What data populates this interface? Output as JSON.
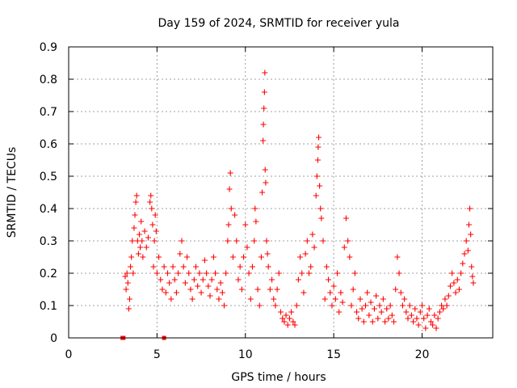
{
  "chart_data": {
    "type": "scatter",
    "title": "Day 159 of 2024, SRMTID for receiver yula",
    "xlabel": "GPS time / hours",
    "ylabel": "SRMTID / TECUs",
    "xlim": [
      0,
      24
    ],
    "ylim": [
      0,
      0.9
    ],
    "xticks": [
      0,
      5,
      10,
      15,
      20
    ],
    "xtick_labels": [
      "0",
      "5",
      "10",
      "15",
      "20"
    ],
    "yticks": [
      0,
      0.1,
      0.2,
      0.3,
      0.4,
      0.5,
      0.6,
      0.7,
      0.8,
      0.9
    ],
    "ytick_labels": [
      "0",
      "0.1",
      "0.2",
      "0.3",
      "0.4",
      "0.5",
      "0.6",
      "0.7",
      "0.8",
      "0.9"
    ],
    "grid": true,
    "series": [
      {
        "name": "SRMTID",
        "marker": "plus",
        "color": "#ff0000",
        "points": [
          [
            3.2,
            0.19
          ],
          [
            3.25,
            0.15
          ],
          [
            3.3,
            0.2
          ],
          [
            3.35,
            0.17
          ],
          [
            3.4,
            0.09
          ],
          [
            3.45,
            0.12
          ],
          [
            3.5,
            0.22
          ],
          [
            3.55,
            0.25
          ],
          [
            3.6,
            0.3
          ],
          [
            3.65,
            0.2
          ],
          [
            3.7,
            0.34
          ],
          [
            3.75,
            0.38
          ],
          [
            3.8,
            0.42
          ],
          [
            3.85,
            0.44
          ],
          [
            3.9,
            0.3
          ],
          [
            3.95,
            0.26
          ],
          [
            4.0,
            0.32
          ],
          [
            4.05,
            0.28
          ],
          [
            4.1,
            0.36
          ],
          [
            4.15,
            0.3
          ],
          [
            4.2,
            0.25
          ],
          [
            4.3,
            0.33
          ],
          [
            4.4,
            0.28
          ],
          [
            4.5,
            0.31
          ],
          [
            4.6,
            0.42
          ],
          [
            4.65,
            0.44
          ],
          [
            4.7,
            0.4
          ],
          [
            4.75,
            0.35
          ],
          [
            4.8,
            0.22
          ],
          [
            4.85,
            0.3
          ],
          [
            4.9,
            0.38
          ],
          [
            4.95,
            0.33
          ],
          [
            5.0,
            0.2
          ],
          [
            5.1,
            0.25
          ],
          [
            5.2,
            0.18
          ],
          [
            5.3,
            0.15
          ],
          [
            5.4,
            0.22
          ],
          [
            5.5,
            0.14
          ],
          [
            5.6,
            0.2
          ],
          [
            5.7,
            0.17
          ],
          [
            5.8,
            0.12
          ],
          [
            5.9,
            0.22
          ],
          [
            6.0,
            0.18
          ],
          [
            6.1,
            0.14
          ],
          [
            6.2,
            0.2
          ],
          [
            6.3,
            0.26
          ],
          [
            6.4,
            0.3
          ],
          [
            6.5,
            0.22
          ],
          [
            6.6,
            0.17
          ],
          [
            6.7,
            0.25
          ],
          [
            6.8,
            0.2
          ],
          [
            6.9,
            0.15
          ],
          [
            7.0,
            0.12
          ],
          [
            7.1,
            0.18
          ],
          [
            7.2,
            0.22
          ],
          [
            7.3,
            0.16
          ],
          [
            7.4,
            0.2
          ],
          [
            7.5,
            0.14
          ],
          [
            7.6,
            0.18
          ],
          [
            7.7,
            0.24
          ],
          [
            7.8,
            0.2
          ],
          [
            7.9,
            0.16
          ],
          [
            8.0,
            0.13
          ],
          [
            8.1,
            0.18
          ],
          [
            8.2,
            0.25
          ],
          [
            8.3,
            0.2
          ],
          [
            8.4,
            0.15
          ],
          [
            8.5,
            0.12
          ],
          [
            8.6,
            0.17
          ],
          [
            8.7,
            0.14
          ],
          [
            8.8,
            0.1
          ],
          [
            8.9,
            0.2
          ],
          [
            9.0,
            0.3
          ],
          [
            9.05,
            0.35
          ],
          [
            9.1,
            0.46
          ],
          [
            9.15,
            0.51
          ],
          [
            9.2,
            0.4
          ],
          [
            9.3,
            0.25
          ],
          [
            9.4,
            0.38
          ],
          [
            9.5,
            0.3
          ],
          [
            9.6,
            0.18
          ],
          [
            9.7,
            0.22
          ],
          [
            9.8,
            0.15
          ],
          [
            9.9,
            0.25
          ],
          [
            10.0,
            0.35
          ],
          [
            10.1,
            0.28
          ],
          [
            10.2,
            0.2
          ],
          [
            10.3,
            0.12
          ],
          [
            10.4,
            0.22
          ],
          [
            10.5,
            0.3
          ],
          [
            10.55,
            0.4
          ],
          [
            10.6,
            0.36
          ],
          [
            10.7,
            0.15
          ],
          [
            10.8,
            0.1
          ],
          [
            10.9,
            0.25
          ],
          [
            10.95,
            0.45
          ],
          [
            11.0,
            0.61
          ],
          [
            11.02,
            0.66
          ],
          [
            11.05,
            0.71
          ],
          [
            11.08,
            0.76
          ],
          [
            11.1,
            0.82
          ],
          [
            11.12,
            0.52
          ],
          [
            11.15,
            0.48
          ],
          [
            11.2,
            0.3
          ],
          [
            11.25,
            0.26
          ],
          [
            11.3,
            0.22
          ],
          [
            11.4,
            0.15
          ],
          [
            11.5,
            0.18
          ],
          [
            11.6,
            0.12
          ],
          [
            11.7,
            0.1
          ],
          [
            11.8,
            0.15
          ],
          [
            11.9,
            0.2
          ],
          [
            12.0,
            0.08
          ],
          [
            12.1,
            0.06
          ],
          [
            12.2,
            0.05
          ],
          [
            12.3,
            0.07
          ],
          [
            12.4,
            0.04
          ],
          [
            12.5,
            0.06
          ],
          [
            12.6,
            0.08
          ],
          [
            12.7,
            0.05
          ],
          [
            12.8,
            0.04
          ],
          [
            12.9,
            0.1
          ],
          [
            13.0,
            0.18
          ],
          [
            13.1,
            0.25
          ],
          [
            13.2,
            0.2
          ],
          [
            13.3,
            0.14
          ],
          [
            13.4,
            0.26
          ],
          [
            13.5,
            0.3
          ],
          [
            13.6,
            0.2
          ],
          [
            13.7,
            0.22
          ],
          [
            13.8,
            0.32
          ],
          [
            13.9,
            0.28
          ],
          [
            14.0,
            0.44
          ],
          [
            14.05,
            0.5
          ],
          [
            14.1,
            0.55
          ],
          [
            14.12,
            0.59
          ],
          [
            14.15,
            0.62
          ],
          [
            14.2,
            0.47
          ],
          [
            14.25,
            0.4
          ],
          [
            14.3,
            0.37
          ],
          [
            14.4,
            0.3
          ],
          [
            14.5,
            0.12
          ],
          [
            14.6,
            0.22
          ],
          [
            14.7,
            0.18
          ],
          [
            14.8,
            0.14
          ],
          [
            14.9,
            0.1
          ],
          [
            15.0,
            0.16
          ],
          [
            15.1,
            0.12
          ],
          [
            15.2,
            0.2
          ],
          [
            15.3,
            0.08
          ],
          [
            15.4,
            0.14
          ],
          [
            15.5,
            0.11
          ],
          [
            15.6,
            0.28
          ],
          [
            15.7,
            0.37
          ],
          [
            15.8,
            0.3
          ],
          [
            15.9,
            0.25
          ],
          [
            16.0,
            0.1
          ],
          [
            16.1,
            0.15
          ],
          [
            16.2,
            0.2
          ],
          [
            16.3,
            0.08
          ],
          [
            16.4,
            0.06
          ],
          [
            16.5,
            0.12
          ],
          [
            16.6,
            0.09
          ],
          [
            16.7,
            0.05
          ],
          [
            16.8,
            0.1
          ],
          [
            16.9,
            0.14
          ],
          [
            17.0,
            0.07
          ],
          [
            17.1,
            0.11
          ],
          [
            17.2,
            0.05
          ],
          [
            17.3,
            0.09
          ],
          [
            17.4,
            0.13
          ],
          [
            17.5,
            0.06
          ],
          [
            17.6,
            0.1
          ],
          [
            17.7,
            0.08
          ],
          [
            17.8,
            0.12
          ],
          [
            17.9,
            0.05
          ],
          [
            18.0,
            0.09
          ],
          [
            18.1,
            0.06
          ],
          [
            18.2,
            0.1
          ],
          [
            18.3,
            0.07
          ],
          [
            18.4,
            0.05
          ],
          [
            18.5,
            0.15
          ],
          [
            18.6,
            0.25
          ],
          [
            18.7,
            0.2
          ],
          [
            18.8,
            0.14
          ],
          [
            18.9,
            0.1
          ],
          [
            19.0,
            0.12
          ],
          [
            19.1,
            0.08
          ],
          [
            19.2,
            0.06
          ],
          [
            19.3,
            0.1
          ],
          [
            19.4,
            0.07
          ],
          [
            19.5,
            0.05
          ],
          [
            19.6,
            0.09
          ],
          [
            19.7,
            0.06
          ],
          [
            19.8,
            0.04
          ],
          [
            19.9,
            0.08
          ],
          [
            20.0,
            0.1
          ],
          [
            20.1,
            0.06
          ],
          [
            20.2,
            0.03
          ],
          [
            20.3,
            0.07
          ],
          [
            20.4,
            0.09
          ],
          [
            20.5,
            0.05
          ],
          [
            20.6,
            0.04
          ],
          [
            20.7,
            0.07
          ],
          [
            20.8,
            0.03
          ],
          [
            20.9,
            0.06
          ],
          [
            21.0,
            0.08
          ],
          [
            21.1,
            0.1
          ],
          [
            21.2,
            0.09
          ],
          [
            21.3,
            0.12
          ],
          [
            21.4,
            0.1
          ],
          [
            21.5,
            0.13
          ],
          [
            21.6,
            0.16
          ],
          [
            21.7,
            0.2
          ],
          [
            21.8,
            0.17
          ],
          [
            21.9,
            0.14
          ],
          [
            22.0,
            0.18
          ],
          [
            22.1,
            0.15
          ],
          [
            22.2,
            0.2
          ],
          [
            22.3,
            0.23
          ],
          [
            22.4,
            0.26
          ],
          [
            22.5,
            0.3
          ],
          [
            22.6,
            0.27
          ],
          [
            22.65,
            0.35
          ],
          [
            22.7,
            0.4
          ],
          [
            22.75,
            0.32
          ],
          [
            22.8,
            0.22
          ],
          [
            22.85,
            0.19
          ],
          [
            22.9,
            0.17
          ]
        ]
      },
      {
        "name": "gaps",
        "marker": "square",
        "color": "#ff0000",
        "points": [
          [
            3.05,
            0.0
          ],
          [
            3.1,
            0.0
          ],
          [
            5.4,
            0.0
          ]
        ]
      }
    ]
  }
}
